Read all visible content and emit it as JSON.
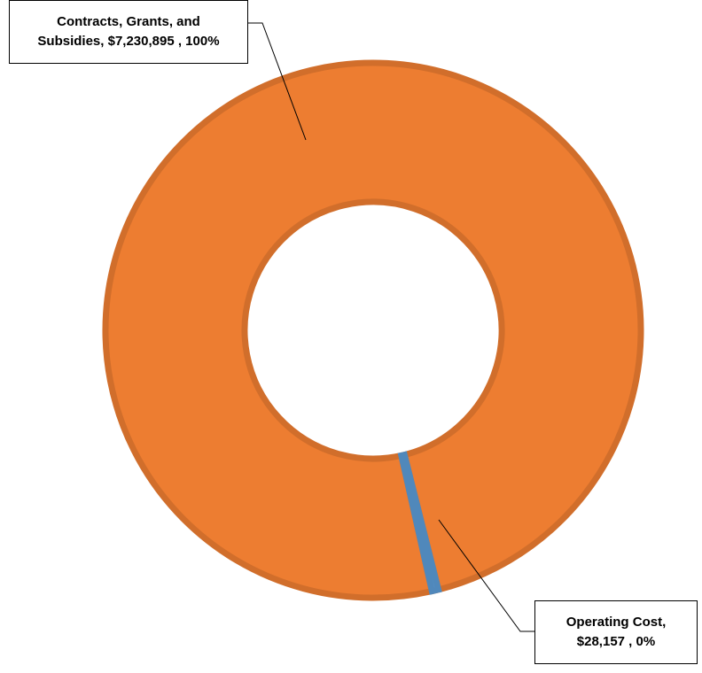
{
  "chart_data": {
    "type": "pie",
    "variant": "doughnut",
    "slices": [
      {
        "label": "Contracts, Grants, and Subsidies",
        "value": 7230895,
        "value_text": "$7,230,895",
        "percent_text": "100%",
        "color": "#ED7D31"
      },
      {
        "label": "Operating Cost",
        "value": 28157,
        "value_text": "$28,157",
        "percent_text": "0%",
        "color": "#5B9BD5"
      }
    ],
    "data_labels": [
      {
        "line1": "Contracts, Grants, and",
        "line2": "Subsidies,  $7,230,895 , 100%"
      },
      {
        "line1": "Operating Cost,",
        "line2": "$28,157 , 0%"
      }
    ],
    "legend": "none"
  }
}
